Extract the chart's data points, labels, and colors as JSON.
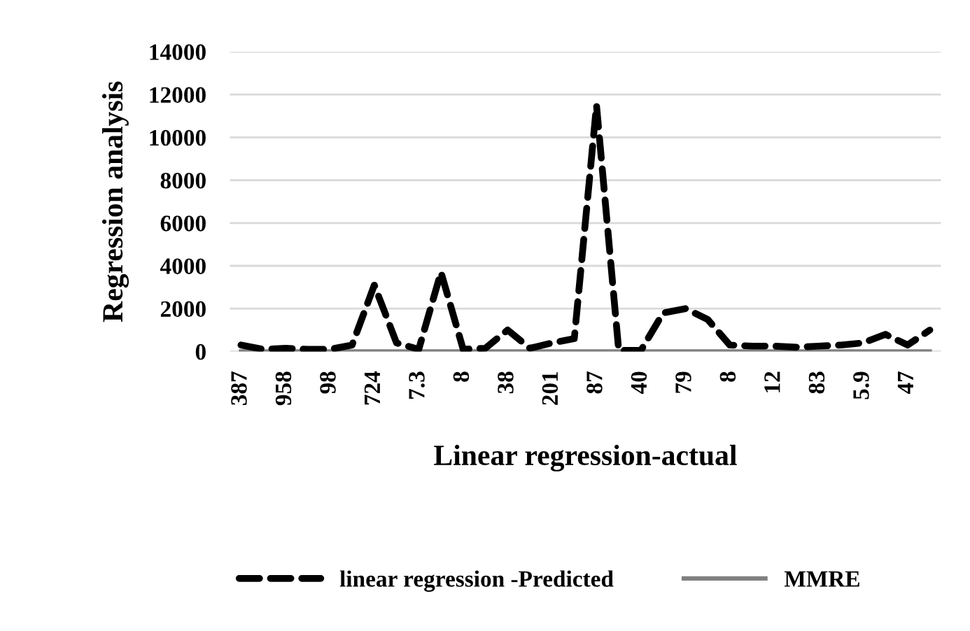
{
  "chart_data": {
    "type": "line",
    "xlabel": "Linear regression-actual",
    "ylabel": "Regression analysis",
    "categories": [
      "387",
      null,
      "958",
      null,
      "98",
      null,
      "724",
      null,
      "7.3",
      null,
      "8",
      null,
      "38",
      null,
      "201",
      null,
      "87",
      null,
      "40",
      null,
      "79",
      null,
      "8",
      null,
      "12",
      null,
      "83",
      null,
      "5.9",
      null,
      "47",
      null
    ],
    "series": [
      {
        "name": "linear regression -Predicted",
        "color": "#000000",
        "line_style": "dashed",
        "values": [
          300,
          100,
          150,
          100,
          100,
          300,
          3100,
          400,
          100,
          3700,
          100,
          150,
          1000,
          150,
          400,
          600,
          11500,
          50,
          50,
          1800,
          2000,
          1500,
          300,
          250,
          250,
          200,
          250,
          300,
          400,
          800,
          300,
          1000
        ]
      },
      {
        "name": "MMRE",
        "color": "#808080",
        "line_style": "solid",
        "values": [
          0,
          0,
          0,
          0,
          0,
          0,
          0,
          0,
          0,
          0,
          0,
          0,
          0,
          0,
          0,
          0,
          0,
          0,
          0,
          0,
          0,
          0,
          0,
          0,
          0,
          0,
          0,
          0,
          0,
          0,
          0,
          0
        ]
      }
    ],
    "ylim": [
      0,
      14000
    ],
    "yticks": [
      0,
      2000,
      4000,
      6000,
      8000,
      10000,
      12000,
      14000
    ],
    "grid": "y",
    "legend": "bottom",
    "marker": "none"
  }
}
